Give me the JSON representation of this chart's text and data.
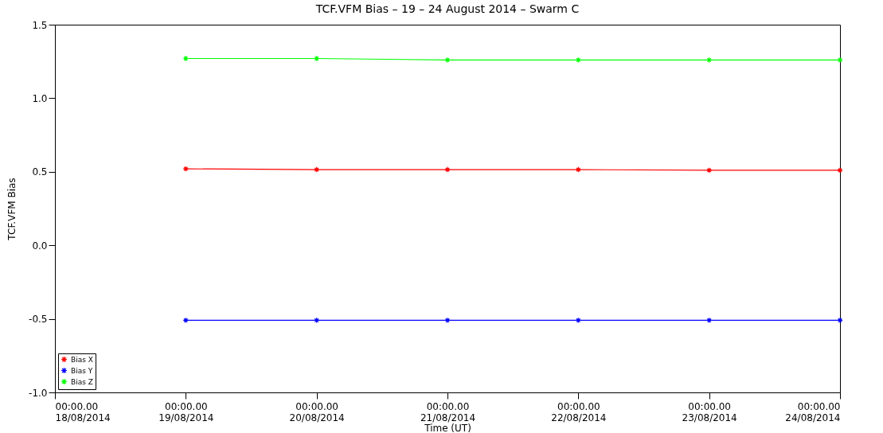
{
  "chart_data": {
    "type": "line",
    "title": "TCF.VFM Bias – 19 – 24 August 2014 – Swarm C",
    "xlabel": "Time (UT)",
    "ylabel": "TCF.VFM Bias",
    "x": [
      "2014-08-19",
      "2014-08-20",
      "2014-08-21",
      "2014-08-22",
      "2014-08-23",
      "2014-08-24"
    ],
    "series": [
      {
        "name": "Bias X",
        "color": "#ff0000",
        "values": [
          0.52,
          0.515,
          0.515,
          0.515,
          0.51,
          0.51
        ]
      },
      {
        "name": "Bias Y",
        "color": "#0000ff",
        "values": [
          -0.51,
          -0.51,
          -0.51,
          -0.51,
          -0.51,
          -0.51
        ]
      },
      {
        "name": "Bias Z",
        "color": "#00ff00",
        "values": [
          1.27,
          1.27,
          1.26,
          1.26,
          1.26,
          1.26
        ]
      }
    ],
    "xlim": [
      "2014-08-18",
      "2014-08-24"
    ],
    "xticks": [
      {
        "value": "2014-08-18",
        "label": "00:00.00\n18/08/2014"
      },
      {
        "value": "2014-08-19",
        "label": "00:00.00\n19/08/2014"
      },
      {
        "value": "2014-08-20",
        "label": "00:00.00\n20/08/2014"
      },
      {
        "value": "2014-08-21",
        "label": "00:00.00\n21/08/2014"
      },
      {
        "value": "2014-08-22",
        "label": "00:00.00\n22/08/2014"
      },
      {
        "value": "2014-08-23",
        "label": "00:00.00\n23/08/2014"
      },
      {
        "value": "2014-08-24",
        "label": "00:00.00\n24/08/2014"
      }
    ],
    "ylim": [
      -1.0,
      1.5
    ],
    "yticks": [
      {
        "value": 1.5,
        "label": "1.5"
      },
      {
        "value": 1.0,
        "label": "1.0"
      },
      {
        "value": 0.5,
        "label": "0.5"
      },
      {
        "value": 0.0,
        "label": "0.0"
      },
      {
        "value": -0.5,
        "label": "-0.5"
      },
      {
        "value": -1.0,
        "label": "-1.0"
      }
    ],
    "grid": false,
    "legend": "bottom left",
    "marker": "cross",
    "line_style": "solid"
  }
}
